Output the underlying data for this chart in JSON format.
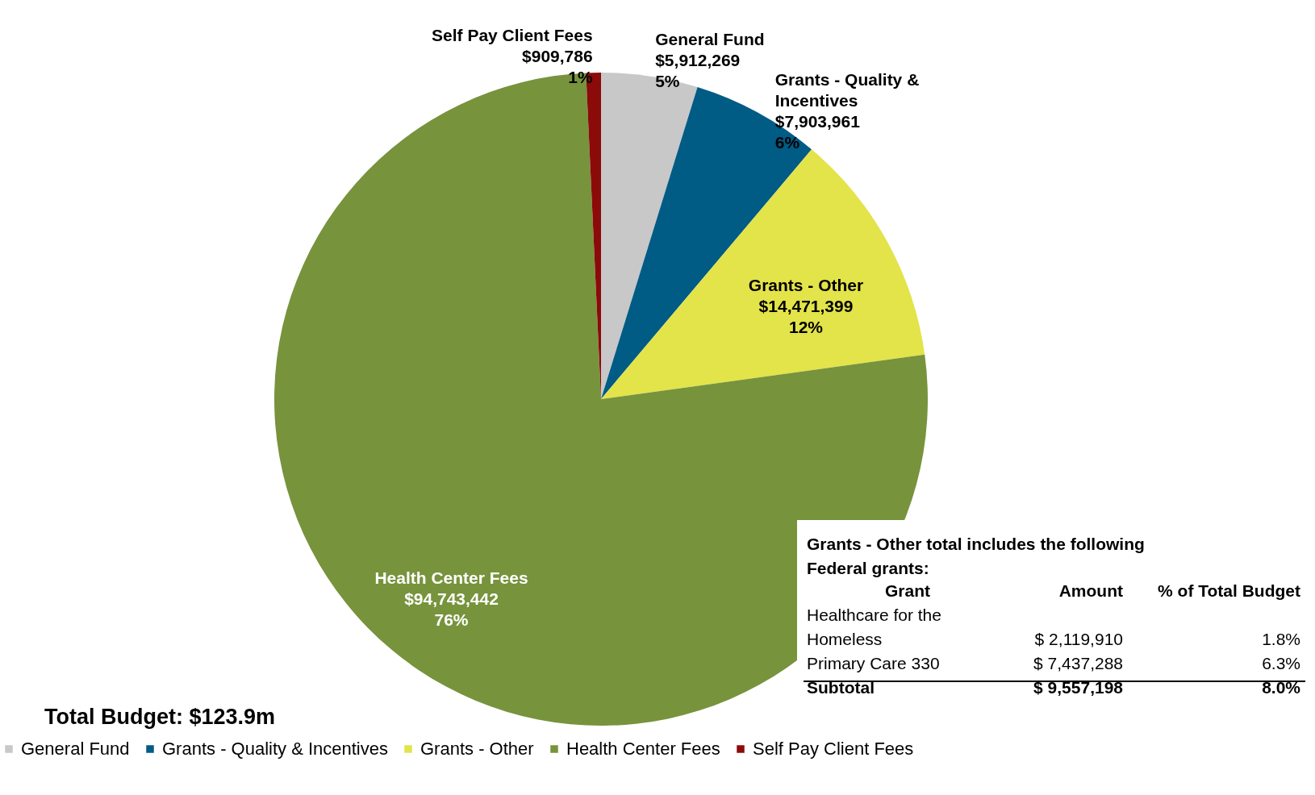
{
  "chart_data": {
    "type": "pie",
    "categories": [
      "General Fund",
      "Grants - Quality & Incentives",
      "Grants - Other",
      "Health Center Fees",
      "Self Pay Client Fees"
    ],
    "values": [
      5912269,
      7903961,
      14471399,
      94743442,
      909786
    ],
    "colors": [
      "#c8c8c8",
      "#005b85",
      "#e3e34a",
      "#77933c",
      "#8b0a0a"
    ],
    "value_labels": [
      "$5,912,269\n5%",
      "$7,903,961\n6%",
      "$14,471,399\n12%",
      "$94,743,442\n76%",
      "$909,786\n1%"
    ],
    "legend": "bottom",
    "annotations": [
      "Total Budget: $123.9m",
      "Grants - Other total includes the following Federal grants:",
      "Grant",
      "Amount",
      "% of Total Budget",
      "Healthcare for the Homeless",
      "$ 2,119,910",
      "1.8%",
      "Primary Care 330",
      "$ 7,437,288",
      "6.3%",
      "Subtotal",
      "$ 9,557,198",
      "8.0%"
    ]
  }
}
